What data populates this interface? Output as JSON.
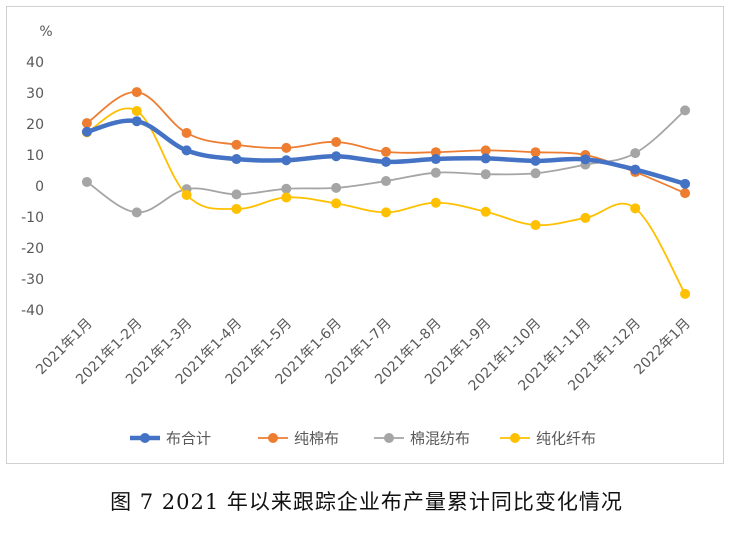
{
  "chart_data": {
    "type": "line",
    "unit_label": "%",
    "ylim": [
      -40,
      40
    ],
    "ytick_step": 10,
    "grid": false,
    "legend_position": "bottom",
    "categories": [
      "2021年1月",
      "2021年1-2月",
      "2021年1-3月",
      "2021年1-4月",
      "2021年1-5月",
      "2021年1-6月",
      "2021年1-7月",
      "2021年1-8月",
      "2021年1-9月",
      "2021年1-10月",
      "2021年1-11月",
      "2021年1-12月",
      "2022年1月"
    ],
    "series": [
      {
        "name": "布合计",
        "color": "#4472C4",
        "line_width": 4.5,
        "smooth": true,
        "values": [
          17.5,
          20.9,
          11.5,
          8.7,
          8.3,
          9.6,
          7.8,
          8.7,
          8.9,
          8.1,
          8.6,
          5.3,
          0.7
        ]
      },
      {
        "name": "纯棉布",
        "color": "#ED7D31",
        "line_width": 1.8,
        "smooth": true,
        "values": [
          20.3,
          30.3,
          17.1,
          13.3,
          12.3,
          14.2,
          11.0,
          10.9,
          11.5,
          10.9,
          10.0,
          4.5,
          -2.3
        ]
      },
      {
        "name": "棉混纺布",
        "color": "#A5A5A5",
        "line_width": 1.8,
        "smooth": true,
        "values": [
          1.3,
          -8.5,
          -1.0,
          -2.7,
          -0.9,
          -0.6,
          1.6,
          4.3,
          3.8,
          4.1,
          6.9,
          10.6,
          24.4
        ]
      },
      {
        "name": "纯化纤布",
        "color": "#FFC000",
        "line_width": 1.8,
        "smooth": true,
        "values": [
          17.3,
          24.2,
          -2.9,
          -7.4,
          -3.7,
          -5.6,
          -8.5,
          -5.4,
          -8.3,
          -12.6,
          -10.3,
          -7.2,
          -34.8
        ]
      }
    ]
  },
  "caption": "图 7   2021 年以来跟踪企业布产量累计同比变化情况"
}
